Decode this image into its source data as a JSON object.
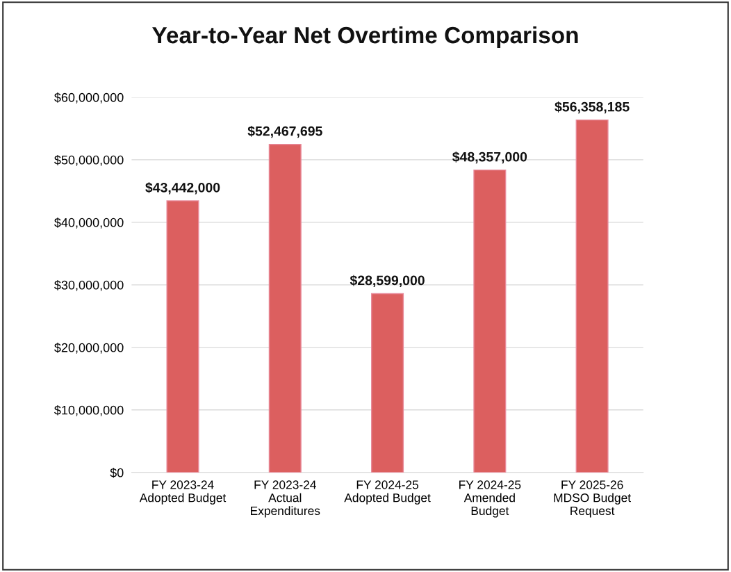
{
  "chart_data": {
    "type": "bar",
    "title": "Year-to-Year Net Overtime Comparison",
    "categories": [
      "FY 2023-24\nAdopted Budget",
      "FY 2023-24\nActual\nExpenditures",
      "FY 2024-25\nAdopted Budget",
      "FY 2024-25\nAmended\nBudget",
      "FY 2025-26\nMDSO Budget\nRequest"
    ],
    "values": [
      43442000,
      52467695,
      28599000,
      48357000,
      56358185
    ],
    "value_labels": [
      "$43,442,000",
      "$52,467,695",
      "$28,599,000",
      "$48,357,000",
      "$56,358,185"
    ],
    "color": "#dc5f5f",
    "ylim": [
      0,
      60000000
    ],
    "yticks": [
      {
        "value": 0,
        "label": "$0"
      },
      {
        "value": 10000000,
        "label": "$10,000,000"
      },
      {
        "value": 20000000,
        "label": "$20,000,000"
      },
      {
        "value": 30000000,
        "label": "$30,000,000"
      },
      {
        "value": 40000000,
        "label": "$40,000,000"
      },
      {
        "value": 50000000,
        "label": "$50,000,000"
      },
      {
        "value": 60000000,
        "label": "$60,000,000"
      }
    ],
    "grid": "y",
    "legend": false
  }
}
